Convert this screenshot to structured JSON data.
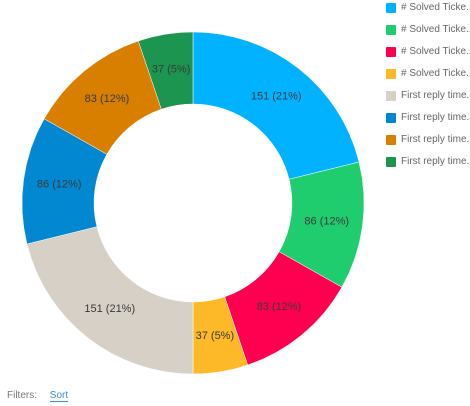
{
  "chart_data": {
    "type": "pie",
    "donut": true,
    "categories": [
      "# Solved Ticke...",
      "# Solved Ticke...",
      "# Solved Ticke...",
      "# Solved Ticke...",
      "First reply time...",
      "First reply time...",
      "First reply time...",
      "First reply time..."
    ],
    "values": [
      151,
      86,
      83,
      37,
      151,
      86,
      83,
      37
    ],
    "data_labels": [
      "151 (21%)",
      "86 (12%)",
      "83 (12%)",
      "37 (5%)",
      "151 (21%)",
      "86 (12%)",
      "83 (12%)",
      "37 (5%)"
    ],
    "colors": [
      "#00b2ff",
      "#1fcd6e",
      "#ff0051",
      "#fdb927",
      "#d6d0c6",
      "#0288d1",
      "#d97f00",
      "#1b9550"
    ],
    "legend": "right"
  },
  "filters": {
    "label": "Filters:",
    "sort_label": "Sort"
  }
}
